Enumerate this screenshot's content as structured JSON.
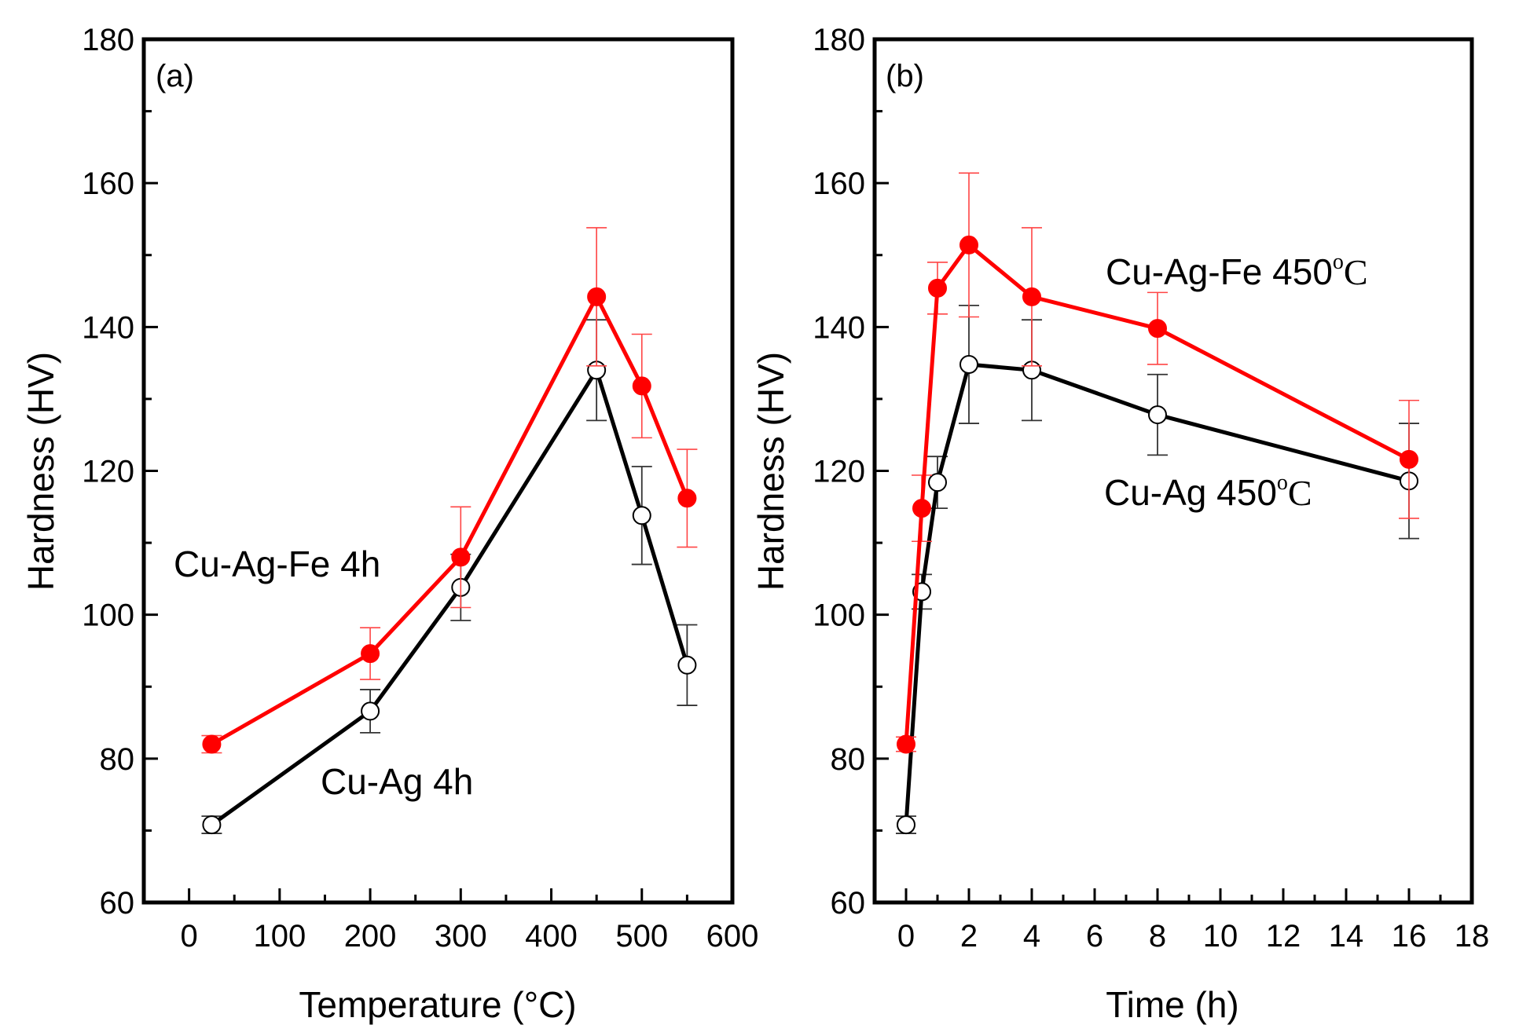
{
  "chart_data": [
    {
      "type": "line",
      "panel_label": "(a)",
      "xlabel": "Temperature (°C)",
      "ylabel": "Hardness (HV)",
      "xlim": [
        -50,
        600
      ],
      "ylim": [
        60,
        180
      ],
      "xticks": [
        0,
        100,
        200,
        300,
        400,
        500,
        600
      ],
      "yticks": [
        60,
        80,
        100,
        120,
        140,
        160,
        180
      ],
      "grid": false,
      "series": [
        {
          "name": "Cu-Ag-Fe 4h",
          "color": "#ff0000",
          "marker": "filled-circle",
          "x": [
            25,
            200,
            300,
            450,
            500,
            550
          ],
          "y": [
            82,
            94.6,
            108,
            144.2,
            131.8,
            116.2
          ],
          "err": [
            1.2,
            3.6,
            7,
            9.6,
            7.2,
            6.8
          ]
        },
        {
          "name": "Cu-Ag 4h",
          "color": "#000000",
          "marker": "open-circle",
          "x": [
            25,
            200,
            300,
            450,
            500,
            550
          ],
          "y": [
            70.8,
            86.6,
            103.8,
            134,
            113.8,
            93
          ],
          "err": [
            1.2,
            3,
            4.6,
            7,
            6.8,
            5.6
          ]
        }
      ],
      "annotations": [
        {
          "text": "Cu-Ag-Fe 4h",
          "series": "Cu-Ag-Fe 4h"
        },
        {
          "text": "Cu-Ag 4h",
          "series": "Cu-Ag 4h"
        }
      ]
    },
    {
      "type": "line",
      "panel_label": "(b)",
      "xlabel": "Time (h)",
      "ylabel": "Hardness (HV)",
      "xlim": [
        -1,
        18
      ],
      "ylim": [
        60,
        180
      ],
      "xticks": [
        0,
        2,
        4,
        6,
        8,
        10,
        12,
        14,
        16,
        18
      ],
      "yticks": [
        60,
        80,
        100,
        120,
        140,
        160,
        180
      ],
      "grid": false,
      "series": [
        {
          "name": "Cu-Ag-Fe 450ºC",
          "color": "#ff0000",
          "marker": "filled-circle",
          "x": [
            0,
            0.5,
            1,
            2,
            4,
            8,
            16
          ],
          "y": [
            82,
            114.8,
            145.4,
            151.4,
            144.2,
            139.8,
            121.6
          ],
          "err": [
            1,
            4.6,
            3.6,
            10,
            9.6,
            5,
            8.2
          ]
        },
        {
          "name": "Cu-Ag 450ºC",
          "color": "#000000",
          "marker": "open-circle",
          "x": [
            0,
            0.5,
            1,
            2,
            4,
            8,
            16
          ],
          "y": [
            70.8,
            103.2,
            118.4,
            134.8,
            134,
            127.8,
            118.6
          ],
          "err": [
            1.2,
            2.4,
            3.6,
            8.2,
            7,
            5.6,
            8
          ]
        }
      ],
      "annotations": [
        {
          "text": "Cu-Ag-Fe 450",
          "superscript": "o",
          "suffix": "C",
          "series": "Cu-Ag-Fe 450ºC"
        },
        {
          "text": "Cu-Ag 450",
          "superscript": "o",
          "suffix": "C",
          "series": "Cu-Ag 450ºC"
        }
      ]
    }
  ]
}
